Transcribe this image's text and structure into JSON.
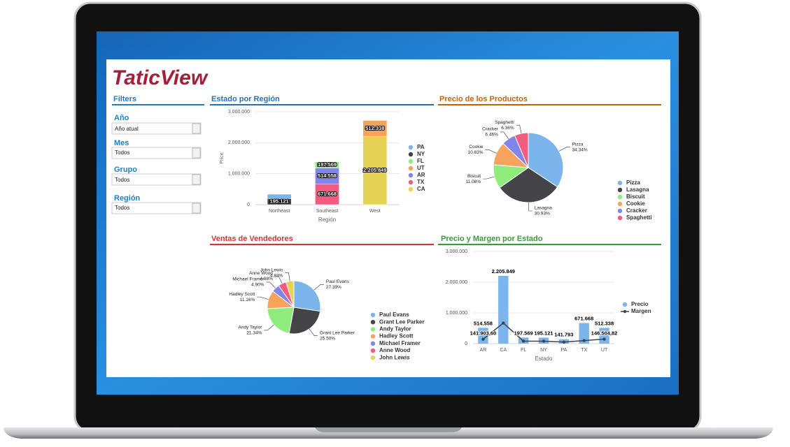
{
  "app": {
    "logo": "TaticView",
    "filters": {
      "title": "Filters",
      "fields": [
        {
          "label": "Año",
          "value": "Año atual"
        },
        {
          "label": "Mes",
          "value": "Todos"
        },
        {
          "label": "Grupo",
          "value": "Todos"
        },
        {
          "label": "Región",
          "value": "Todos"
        }
      ]
    }
  },
  "chart_data": [
    {
      "type": "bar",
      "stacked": true,
      "title": "Estado por Región",
      "x_label": "Región",
      "y_label": "Price",
      "categories": [
        "Northeast",
        "Southeast",
        "West"
      ],
      "series": [
        {
          "name": "PA",
          "color": "#7cb5ec",
          "values": [
            141793,
            null,
            null
          ]
        },
        {
          "name": "NY",
          "color": "#434348",
          "values": [
            195121,
            null,
            null
          ],
          "value_labels": [
            "195.121",
            null,
            null
          ]
        },
        {
          "name": "FL",
          "color": "#90ed7d",
          "values": [
            null,
            197569,
            null
          ],
          "value_labels": [
            null,
            "197.569",
            null
          ]
        },
        {
          "name": "UT",
          "color": "#f7a35c",
          "values": [
            null,
            null,
            512338
          ],
          "value_labels": [
            null,
            null,
            "512.338"
          ]
        },
        {
          "name": "AR",
          "color": "#8085e9",
          "values": [
            null,
            514558,
            null
          ],
          "value_labels": [
            null,
            "514.558",
            null
          ]
        },
        {
          "name": "TX",
          "color": "#f15c80",
          "values": [
            null,
            671668,
            null
          ],
          "value_labels": [
            null,
            "671.668",
            null
          ]
        },
        {
          "name": "CA",
          "color": "#e4d354",
          "values": [
            null,
            null,
            2205849
          ],
          "value_labels": [
            null,
            null,
            "2.205.849"
          ]
        }
      ],
      "ylim": [
        0,
        3000000
      ],
      "yticks": [
        0,
        {
          "value": 1000000,
          "label": "1.000.000"
        },
        {
          "value": 2000000,
          "label": "2.000.000"
        },
        {
          "value": 3000000,
          "label": "3.000.000"
        }
      ],
      "grid": true
    },
    {
      "type": "pie",
      "title": "Precio de los Productos",
      "categories": [
        "Pizza",
        "Lasagna",
        "Biscuit",
        "Cookie",
        "Cracker",
        "Spaghetti"
      ],
      "values": [
        34.34,
        30.93,
        11.08,
        10.83,
        6.46,
        6.36
      ],
      "value_labels": [
        "34.34%",
        "30.93%",
        "11.08%",
        "10.83%",
        "6.46%",
        "6.36%"
      ],
      "colors": [
        "#7cb5ec",
        "#434348",
        "#90ed7d",
        "#f7a35c",
        "#8085e9",
        "#f15c80"
      ]
    },
    {
      "type": "pie",
      "title": "Ventas de Vendedores",
      "categories": [
        "Paul Evans",
        "Grant Lee Parker",
        "Andy Taylor",
        "Hadley Scott",
        "Michael Framer",
        "Anne Wood",
        "John Lewis"
      ],
      "values": [
        27.39,
        25.5,
        21.34,
        11.16,
        4.9,
        4.88,
        4.83
      ],
      "value_labels": [
        "27.39%",
        "25.50%",
        "21.34%",
        "11.16%",
        "4.90%",
        "4.88%",
        "4.83%"
      ],
      "colors": [
        "#7cb5ec",
        "#434348",
        "#90ed7d",
        "#f7a35c",
        "#8085e9",
        "#f15c80",
        "#e4d354"
      ]
    },
    {
      "type": "bar",
      "stacked": false,
      "title": "Precio y Margen por Estado",
      "x_label": "Estado",
      "categories": [
        "AR",
        "CA",
        "FL",
        "NY",
        "PA",
        "TX",
        "UT"
      ],
      "series": [
        {
          "name": "Precio",
          "color": "#7cb5ec",
          "values": [
            514558,
            2205849,
            197569,
            195121,
            141793,
            671668,
            512338
          ],
          "value_labels": [
            "514.558",
            "2.205.849",
            "197.569",
            "195.121",
            "141.793",
            "671.668",
            "512.338"
          ]
        },
        {
          "name": "Margen",
          "type": "line",
          "color": "#434348",
          "values": [
            141903.6,
            670000,
            80000,
            80000,
            50000,
            100000,
            146504.82
          ],
          "value_labels": [
            "141.903,60",
            null,
            null,
            null,
            null,
            null,
            "146.504,82"
          ]
        }
      ],
      "ylim": [
        0,
        3000000
      ],
      "yticks": [
        0,
        {
          "value": 1000000,
          "label": "1.000.000"
        },
        {
          "value": 2000000,
          "label": "2.000.000"
        },
        {
          "value": 3000000,
          "label": "3.000.000"
        }
      ],
      "grid": true
    }
  ]
}
